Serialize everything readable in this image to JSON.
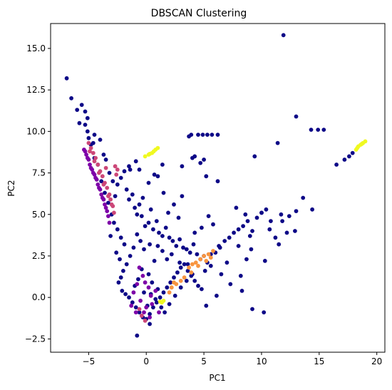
{
  "chart_data": {
    "type": "scatter",
    "title": "DBSCAN Clustering",
    "xlabel": "PC1",
    "ylabel": "PC2",
    "xlim": [
      -8.3,
      20.7
    ],
    "ylim": [
      -3.3,
      16.5
    ],
    "xticks": [
      -5,
      0,
      5,
      10,
      15,
      20
    ],
    "yticks": [
      -2.5,
      0.0,
      2.5,
      5.0,
      7.5,
      10.0,
      12.5,
      15.0
    ],
    "xtick_labels": [
      "−5",
      "0",
      "5",
      "10",
      "15",
      "20"
    ],
    "ytick_labels": [
      "−2.5",
      "0.0",
      "2.5",
      "5.0",
      "7.5",
      "10.0",
      "12.5",
      "15.0"
    ],
    "grid": false,
    "legend": "none",
    "colormap": "plasma",
    "colors": {
      "noise": "#0d0887",
      "cluster_a": "#7e03a8",
      "cluster_b": "#cc4778",
      "cluster_c": "#f89540",
      "cluster_d": "#f0f921"
    },
    "clusters": [
      {
        "color": "#0d0887",
        "points": [
          [
            -6.9,
            13.2
          ],
          [
            -6.5,
            12.0
          ],
          [
            -6.0,
            11.3
          ],
          [
            -5.6,
            11.6
          ],
          [
            -5.8,
            10.5
          ],
          [
            -5.3,
            10.4
          ],
          [
            -5.1,
            10.0
          ],
          [
            -5.0,
            9.6
          ],
          [
            -4.8,
            9.2
          ],
          [
            -4.5,
            9.8
          ],
          [
            -4.0,
            9.5
          ],
          [
            -3.7,
            8.6
          ],
          [
            -3.2,
            7.5
          ],
          [
            -2.9,
            7.0
          ],
          [
            -2.7,
            6.1
          ],
          [
            -2.5,
            6.8
          ],
          [
            -2.2,
            7.2
          ],
          [
            -1.9,
            7.6
          ],
          [
            -1.7,
            6.5
          ],
          [
            -1.5,
            5.9
          ],
          [
            -1.2,
            6.2
          ],
          [
            -1.0,
            5.4
          ],
          [
            -0.8,
            5.0
          ],
          [
            -0.6,
            5.6
          ],
          [
            -0.4,
            4.9
          ],
          [
            -0.3,
            6.0
          ],
          [
            -0.1,
            4.3
          ],
          [
            0.2,
            4.5
          ],
          [
            0.4,
            5.3
          ],
          [
            0.6,
            4.1
          ],
          [
            0.9,
            4.6
          ],
          [
            1.1,
            3.9
          ],
          [
            1.4,
            3.7
          ],
          [
            1.7,
            4.2
          ],
          [
            2.0,
            3.6
          ],
          [
            2.3,
            3.4
          ],
          [
            2.6,
            3.1
          ],
          [
            2.9,
            3.5
          ],
          [
            3.2,
            3.0
          ],
          [
            3.5,
            2.9
          ],
          [
            3.8,
            2.7
          ],
          [
            4.1,
            3.2
          ],
          [
            4.4,
            2.6
          ],
          [
            4.7,
            2.3
          ],
          [
            5.0,
            2.5
          ],
          [
            5.3,
            2.1
          ],
          [
            5.6,
            2.6
          ],
          [
            6.0,
            2.7
          ],
          [
            6.4,
            3.0
          ],
          [
            6.8,
            3.4
          ],
          [
            7.2,
            3.6
          ],
          [
            7.6,
            3.9
          ],
          [
            8.0,
            4.1
          ],
          [
            8.4,
            4.3
          ],
          [
            8.8,
            4.6
          ],
          [
            9.2,
            4.0
          ],
          [
            9.6,
            4.8
          ],
          [
            10.0,
            5.1
          ],
          [
            10.4,
            5.3
          ],
          [
            10.7,
            4.1
          ],
          [
            11.2,
            3.6
          ],
          [
            11.5,
            3.2
          ],
          [
            11.8,
            4.6
          ],
          [
            12.4,
            4.9
          ],
          [
            13.0,
            5.2
          ],
          [
            13.6,
            6.0
          ],
          [
            14.4,
            5.3
          ],
          [
            8.7,
            2.3
          ],
          [
            8.2,
            1.3
          ],
          [
            10.3,
            2.2
          ],
          [
            9.1,
            2.9
          ],
          [
            6.3,
            3.1
          ],
          [
            5.8,
            4.4
          ],
          [
            5.4,
            4.9
          ],
          [
            4.8,
            4.2
          ],
          [
            4.2,
            3.9
          ],
          [
            3.6,
            2.0
          ],
          [
            2.9,
            2.1
          ],
          [
            2.2,
            2.6
          ],
          [
            1.8,
            2.3
          ],
          [
            1.4,
            2.8
          ],
          [
            1.0,
            3.1
          ],
          [
            0.7,
            2.2
          ],
          [
            0.3,
            3.2
          ],
          [
            -0.2,
            2.9
          ],
          [
            -0.5,
            3.4
          ],
          [
            -0.8,
            3.8
          ],
          [
            -1.1,
            3.0
          ],
          [
            -1.4,
            2.5
          ],
          [
            -1.7,
            2.0
          ],
          [
            -2.0,
            1.6
          ],
          [
            -2.2,
            1.2
          ],
          [
            -2.4,
            0.9
          ],
          [
            -2.1,
            0.4
          ],
          [
            -1.8,
            0.2
          ],
          [
            -1.5,
            0.0
          ],
          [
            -1.2,
            -0.3
          ],
          [
            -0.9,
            -0.6
          ],
          [
            -0.6,
            -0.9
          ],
          [
            -0.3,
            -1.2
          ],
          [
            0.0,
            -1.3
          ],
          [
            0.3,
            -1.0
          ],
          [
            0.6,
            -0.6
          ],
          [
            0.9,
            -0.3
          ],
          [
            1.2,
            0.0
          ],
          [
            1.5,
            0.3
          ],
          [
            1.8,
            0.6
          ],
          [
            2.1,
            0.9
          ],
          [
            2.4,
            1.2
          ],
          [
            2.7,
            1.5
          ],
          [
            3.0,
            1.8
          ],
          [
            3.3,
            2.0
          ],
          [
            3.6,
            1.6
          ],
          [
            3.9,
            1.3
          ],
          [
            4.2,
            1.0
          ],
          [
            4.5,
            0.7
          ],
          [
            4.8,
            0.5
          ],
          [
            1.0,
            0.5
          ],
          [
            0.5,
            0.9
          ],
          [
            0.2,
            1.4
          ],
          [
            -0.4,
            1.7
          ],
          [
            -0.7,
            1.1
          ],
          [
            -1.0,
            0.7
          ],
          [
            -0.2,
            0.3
          ],
          [
            0.1,
            -0.5
          ],
          [
            0.4,
            0.2
          ],
          [
            0.8,
            -0.1
          ],
          [
            1.3,
            -0.6
          ],
          [
            1.6,
            -0.9
          ],
          [
            2.0,
            -0.4
          ],
          [
            2.5,
            0.1
          ],
          [
            3.0,
            0.6
          ],
          [
            3.5,
            1.0
          ],
          [
            4.0,
            1.4
          ],
          [
            5.1,
            1.6
          ],
          [
            5.6,
            1.9
          ],
          [
            0.3,
            -1.6
          ],
          [
            -0.8,
            -2.3
          ],
          [
            9.2,
            -0.7
          ],
          [
            10.2,
            -0.9
          ],
          [
            5.2,
            -0.5
          ],
          [
            4.5,
            9.8
          ],
          [
            4.9,
            9.8
          ],
          [
            5.3,
            9.8
          ],
          [
            5.7,
            9.8
          ],
          [
            6.2,
            9.8
          ],
          [
            3.7,
            9.7
          ],
          [
            3.9,
            9.8
          ],
          [
            4.2,
            8.5
          ],
          [
            4.7,
            8.1
          ],
          [
            5.2,
            7.3
          ],
          [
            6.2,
            7.0
          ],
          [
            5.0,
            8.3
          ],
          [
            4.0,
            8.4
          ],
          [
            3.1,
            7.9
          ],
          [
            1.4,
            8.0
          ],
          [
            1.0,
            7.3
          ],
          [
            0.7,
            7.4
          ],
          [
            0.2,
            6.9
          ],
          [
            -0.6,
            7.7
          ],
          [
            -1.5,
            7.9
          ],
          [
            -1.4,
            7.7
          ],
          [
            9.4,
            8.5
          ],
          [
            11.4,
            9.3
          ],
          [
            13.0,
            10.9
          ],
          [
            14.3,
            10.1
          ],
          [
            14.9,
            10.1
          ],
          [
            15.4,
            10.1
          ],
          [
            16.5,
            8.0
          ],
          [
            17.2,
            8.3
          ],
          [
            17.6,
            8.5
          ],
          [
            17.9,
            8.7
          ],
          [
            11.9,
            15.8
          ],
          [
            10.0,
            5.1
          ],
          [
            9.0,
            3.7
          ],
          [
            8.0,
            3.1
          ],
          [
            7.0,
            2.1
          ],
          [
            6.5,
            1.4
          ],
          [
            7.3,
            0.8
          ],
          [
            8.3,
            0.4
          ],
          [
            6.1,
            0.1
          ],
          [
            -3.6,
            6.3
          ],
          [
            -3.3,
            5.7
          ],
          [
            -3.0,
            5.0
          ],
          [
            -2.8,
            4.5
          ],
          [
            -2.5,
            4.1
          ],
          [
            -2.2,
            3.6
          ],
          [
            -1.9,
            3.2
          ],
          [
            -3.9,
            7.0
          ],
          [
            -4.2,
            8.0
          ],
          [
            -4.5,
            8.4
          ],
          [
            -2.6,
            2.7
          ],
          [
            -2.3,
            2.3
          ],
          [
            -3.1,
            3.7
          ],
          [
            -0.9,
            8.2
          ],
          [
            2.4,
            5.6
          ],
          [
            2.8,
            4.8
          ],
          [
            3.1,
            6.1
          ],
          [
            1.9,
            5.1
          ],
          [
            1.5,
            6.3
          ],
          [
            7.8,
            5.4
          ],
          [
            8.6,
            5.0
          ],
          [
            12.2,
            3.9
          ],
          [
            11.7,
            5.0
          ],
          [
            12.9,
            4.0
          ],
          [
            10.8,
            4.6
          ],
          [
            -5.1,
            10.8
          ],
          [
            -5.3,
            11.2
          ],
          [
            -4.6,
            9.3
          ],
          [
            -3.5,
            8.3
          ]
        ]
      },
      {
        "color": "#7e03a8",
        "points": [
          [
            -5.4,
            8.9
          ],
          [
            -5.2,
            8.6
          ],
          [
            -5.0,
            8.3
          ],
          [
            -4.9,
            8.0
          ],
          [
            -4.7,
            7.7
          ],
          [
            -4.5,
            7.4
          ],
          [
            -4.3,
            7.1
          ],
          [
            -4.2,
            6.8
          ],
          [
            -4.0,
            6.5
          ],
          [
            -3.9,
            6.2
          ],
          [
            -3.7,
            5.9
          ],
          [
            -3.6,
            5.6
          ],
          [
            -3.4,
            5.2
          ],
          [
            -3.3,
            4.9
          ],
          [
            -3.2,
            4.5
          ],
          [
            -5.3,
            8.8
          ],
          [
            -5.1,
            8.4
          ],
          [
            -4.8,
            7.8
          ],
          [
            -4.6,
            7.5
          ],
          [
            -4.4,
            7.2
          ],
          [
            -4.1,
            6.6
          ],
          [
            -3.8,
            6.0
          ],
          [
            -3.5,
            5.4
          ],
          [
            -0.6,
            1.8
          ],
          [
            -0.3,
            1.3
          ],
          [
            -0.1,
            0.9
          ],
          [
            0.2,
            0.6
          ],
          [
            0.4,
            0.1
          ],
          [
            -0.8,
            0.8
          ],
          [
            -1.1,
            0.3
          ],
          [
            -0.5,
            -0.2
          ],
          [
            0.0,
            -0.6
          ],
          [
            0.5,
            -0.4
          ],
          [
            -0.2,
            -0.9
          ],
          [
            0.3,
            -1.2
          ],
          [
            1.1,
            -0.9
          ],
          [
            -1.3,
            -0.5
          ],
          [
            0.8,
            0.4
          ],
          [
            -0.9,
            -0.9
          ]
        ]
      },
      {
        "color": "#cc4778",
        "points": [
          [
            -5.0,
            9.3
          ],
          [
            -4.8,
            9.0
          ],
          [
            -4.6,
            8.7
          ],
          [
            -4.4,
            8.4
          ],
          [
            -4.2,
            8.0
          ],
          [
            -4.0,
            7.6
          ],
          [
            -3.8,
            7.3
          ],
          [
            -3.6,
            6.9
          ],
          [
            -3.4,
            6.6
          ],
          [
            -3.2,
            6.2
          ],
          [
            -3.1,
            5.9
          ],
          [
            -2.9,
            5.5
          ],
          [
            -2.8,
            5.1
          ],
          [
            -4.9,
            8.8
          ],
          [
            -4.5,
            8.2
          ],
          [
            -4.1,
            7.5
          ],
          [
            -3.7,
            6.8
          ],
          [
            -3.3,
            6.1
          ],
          [
            -3.0,
            5.6
          ],
          [
            -2.7,
            7.9
          ],
          [
            -2.5,
            7.7
          ],
          [
            -3.5,
            7.8
          ],
          [
            -2.6,
            7.4
          ],
          [
            -0.4,
            -1.1
          ],
          [
            -0.1,
            -1.4
          ],
          [
            -0.6,
            -0.7
          ]
        ]
      },
      {
        "color": "#f89540",
        "points": [
          [
            3.7,
            1.8
          ],
          [
            4.0,
            2.0
          ],
          [
            4.3,
            2.1
          ],
          [
            4.7,
            2.3
          ],
          [
            5.0,
            2.5
          ],
          [
            5.4,
            2.6
          ],
          [
            5.8,
            2.8
          ],
          [
            3.9,
            1.5
          ],
          [
            4.5,
            1.9
          ],
          [
            5.2,
            2.2
          ],
          [
            5.6,
            2.4
          ],
          [
            2.2,
            0.6
          ],
          [
            2.6,
            0.8
          ],
          [
            3.0,
            1.0
          ],
          [
            2.0,
            0.3
          ],
          [
            3.3,
            1.2
          ],
          [
            2.4,
            0.9
          ]
        ]
      },
      {
        "color": "#f0f921",
        "points": [
          [
            -0.1,
            8.5
          ],
          [
            0.2,
            8.6
          ],
          [
            0.5,
            8.7
          ],
          [
            0.8,
            8.9
          ],
          [
            1.0,
            9.0
          ],
          [
            0.3,
            8.65
          ],
          [
            0.65,
            8.8
          ],
          [
            18.2,
            8.9
          ],
          [
            18.4,
            9.1
          ],
          [
            18.6,
            9.2
          ],
          [
            18.8,
            9.3
          ],
          [
            19.0,
            9.4
          ],
          [
            18.3,
            9.0
          ],
          [
            18.7,
            9.25
          ],
          [
            1.2,
            -0.25
          ],
          [
            1.5,
            -0.2
          ],
          [
            1.35,
            -0.3
          ]
        ]
      }
    ]
  }
}
